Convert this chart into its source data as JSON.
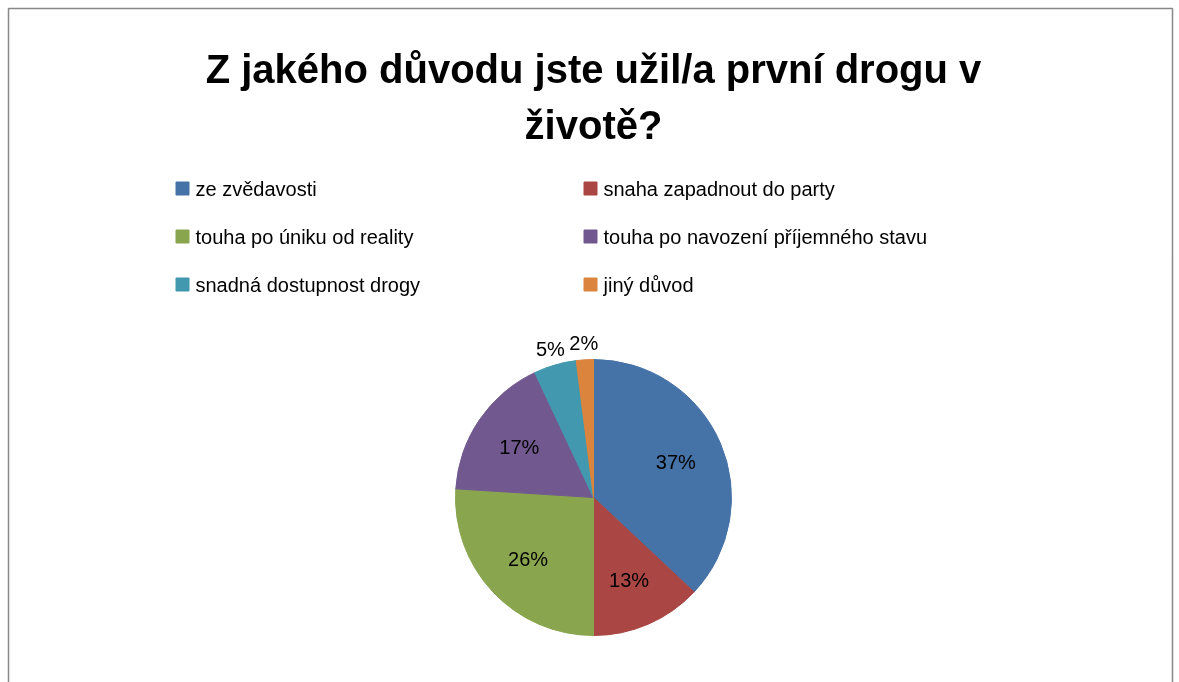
{
  "chart_data": {
    "type": "pie",
    "title": "Z jakého důvodu jste užil/a první drogu v životě?",
    "categories": [
      "ze zvědavosti",
      "snaha zapadnout do party",
      "touha po úniku od reality",
      "touha po navození příjemného stavu",
      "snadná dostupnost drogy",
      "jiný důvod"
    ],
    "values": [
      37,
      13,
      26,
      17,
      5,
      2
    ],
    "colors": [
      "#4572a7",
      "#aa4643",
      "#89a54e",
      "#71588f",
      "#4198af",
      "#db843d"
    ],
    "value_labels": [
      "37%",
      "13%",
      "26%",
      "17%",
      "5%",
      "2%"
    ],
    "legend": "top"
  }
}
